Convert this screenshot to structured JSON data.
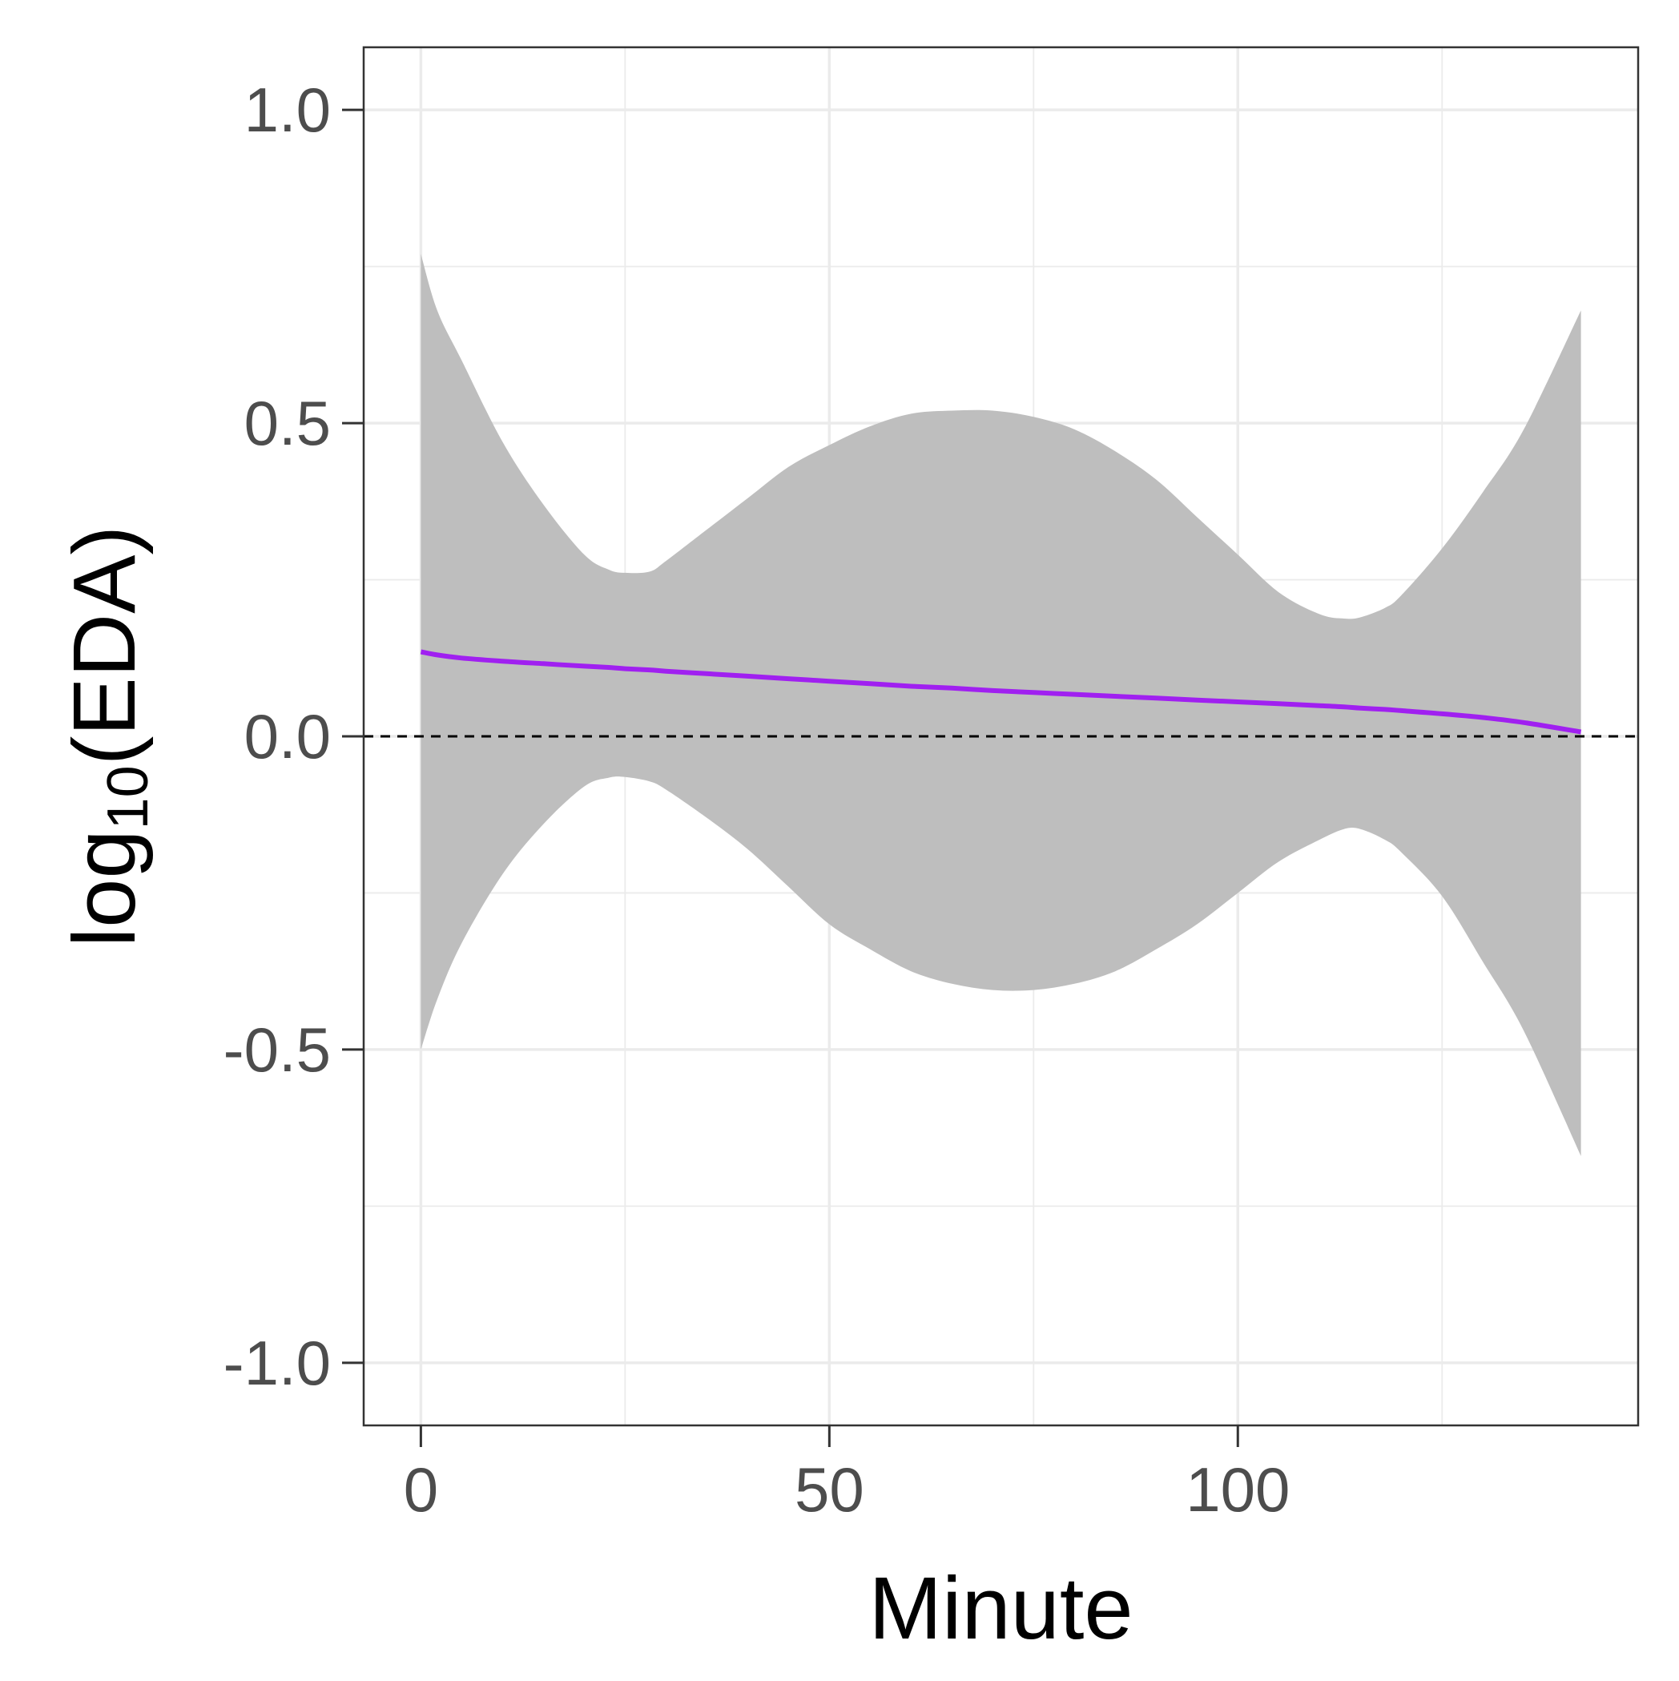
{
  "chart_data": {
    "type": "line",
    "title": "",
    "xlabel": "Minute",
    "ylabel": {
      "prefix": "log",
      "subscript": "10",
      "suffix": "(EDA)"
    },
    "xlim": [
      -7,
      149
    ],
    "ylim": [
      -1.1,
      1.1
    ],
    "x_ticks": [
      0,
      50,
      100
    ],
    "x_tick_labels": [
      "0",
      "50",
      "100"
    ],
    "x_minor_breaks": [
      25,
      75,
      125
    ],
    "y_ticks": [
      -1.0,
      -0.5,
      0.0,
      0.5,
      1.0
    ],
    "y_tick_labels": [
      "-1.0",
      "-0.5",
      "0.0",
      "0.5",
      "1.0"
    ],
    "y_minor_breaks": [
      -0.75,
      -0.25,
      0.25,
      0.75
    ],
    "grid": true,
    "reference_line": {
      "y": 0,
      "style": "dashed",
      "color": "#000000"
    },
    "colors": {
      "line": "#a020f0",
      "ribbon": "#bebebe",
      "grid": "#ebebeb",
      "border": "#333333"
    },
    "series": [
      {
        "x": [
          0,
          2,
          5,
          10,
          15,
          20,
          23,
          25,
          28,
          30,
          35,
          40,
          45,
          50,
          55,
          60,
          65,
          70,
          75,
          80,
          85,
          90,
          95,
          100,
          105,
          110,
          113,
          115,
          118,
          120,
          125,
          130,
          135,
          142
        ],
        "y": [
          0.135,
          0.13,
          0.125,
          0.12,
          0.116,
          0.112,
          0.11,
          0.108,
          0.106,
          0.104,
          0.1,
          0.096,
          0.092,
          0.088,
          0.084,
          0.08,
          0.077,
          0.073,
          0.07,
          0.067,
          0.064,
          0.061,
          0.058,
          0.055,
          0.052,
          0.049,
          0.047,
          0.045,
          0.043,
          0.041,
          0.036,
          0.03,
          0.022,
          0.007
        ],
        "lower": [
          -0.5,
          -0.42,
          -0.33,
          -0.22,
          -0.14,
          -0.08,
          -0.066,
          -0.065,
          -0.072,
          -0.085,
          -0.13,
          -0.18,
          -0.24,
          -0.3,
          -0.34,
          -0.375,
          -0.395,
          -0.405,
          -0.405,
          -0.395,
          -0.375,
          -0.34,
          -0.3,
          -0.25,
          -0.2,
          -0.165,
          -0.148,
          -0.148,
          -0.165,
          -0.185,
          -0.255,
          -0.36,
          -0.47,
          -0.67
        ],
        "upper": [
          0.77,
          0.68,
          0.6,
          0.47,
          0.37,
          0.29,
          0.266,
          0.261,
          0.263,
          0.28,
          0.33,
          0.38,
          0.43,
          0.465,
          0.495,
          0.515,
          0.52,
          0.52,
          0.51,
          0.49,
          0.455,
          0.41,
          0.35,
          0.29,
          0.23,
          0.195,
          0.188,
          0.19,
          0.205,
          0.225,
          0.3,
          0.39,
          0.49,
          0.68
        ]
      }
    ]
  }
}
